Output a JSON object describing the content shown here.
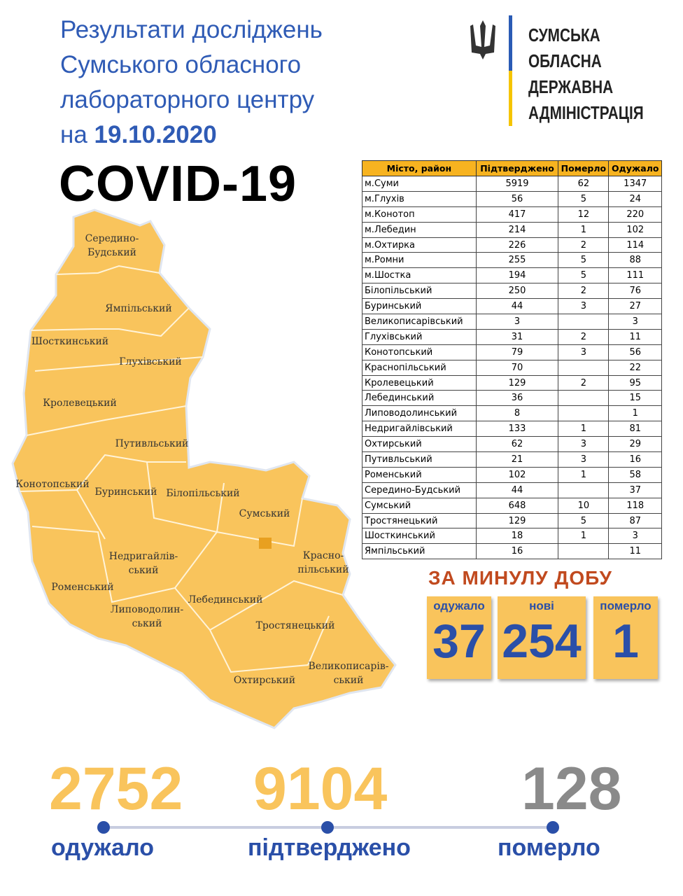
{
  "header": {
    "title_lines": [
      "Результати досліджень",
      "Сумського обласного",
      "лабораторного центру"
    ],
    "date_prefix": "на ",
    "date": "19.10.2020",
    "covid": "COVID-19"
  },
  "logo": {
    "lines": [
      "СУМСЬКА",
      "ОБЛАСНА",
      "ДЕРЖАВНА",
      "АДМІНІСТРАЦІЯ"
    ],
    "colors": {
      "blue": "#2a5bb5",
      "yellow": "#f5c400"
    }
  },
  "table": {
    "headers": [
      "Місто, район",
      "Підтверджено",
      "Померло",
      "Одужало"
    ],
    "rows": [
      [
        "м.Суми",
        "5919",
        "62",
        "1347"
      ],
      [
        "м.Глухів",
        "56",
        "5",
        "24"
      ],
      [
        "м.Конотоп",
        "417",
        "12",
        "220"
      ],
      [
        "м.Лебедин",
        "214",
        "1",
        "102"
      ],
      [
        "м.Охтирка",
        "226",
        "2",
        "114"
      ],
      [
        "м.Ромни",
        "255",
        "5",
        "88"
      ],
      [
        "м.Шостка",
        "194",
        "5",
        "111"
      ],
      [
        "Білопільський",
        "250",
        "2",
        "76"
      ],
      [
        "Буринський",
        "44",
        "3",
        "27"
      ],
      [
        "Великописарівський",
        "3",
        "",
        "3"
      ],
      [
        "Глухівський",
        "31",
        "2",
        "11"
      ],
      [
        "Конотопський",
        "79",
        "3",
        "56"
      ],
      [
        "Краснопільський",
        "70",
        "",
        "22"
      ],
      [
        "Кролевецький",
        "129",
        "2",
        "95"
      ],
      [
        "Лебединський",
        "36",
        "",
        "15"
      ],
      [
        "Липоводолинський",
        "8",
        "",
        "1"
      ],
      [
        "Недригайлівський",
        "133",
        "1",
        "81"
      ],
      [
        "Охтирський",
        "62",
        "3",
        "29"
      ],
      [
        "Путивльський",
        "21",
        "3",
        "16"
      ],
      [
        "Роменський",
        "102",
        "1",
        "58"
      ],
      [
        "Середино-Будський",
        "44",
        "",
        "37"
      ],
      [
        "Сумський",
        "648",
        "10",
        "118"
      ],
      [
        "Тростянецький",
        "129",
        "5",
        "87"
      ],
      [
        "Шосткинський",
        "18",
        "1",
        "3"
      ],
      [
        "Ямпільський",
        "16",
        "",
        "11"
      ]
    ]
  },
  "daily": {
    "title": "ЗА МИНУЛУ ДОБУ",
    "recovered_label": "одужало",
    "recovered": "37",
    "new_label": "нові",
    "new": "254",
    "died_label": "померло",
    "died": "1"
  },
  "totals": {
    "recovered": "2752",
    "recovered_label": "одужало",
    "confirmed": "9104",
    "confirmed_label": "підтверджено",
    "died": "128",
    "died_label": "померло"
  },
  "map": {
    "districts": [
      "Середино-|Будський",
      "Ямпільський",
      "Шосткинський",
      "Глухівський",
      "Кролевецький",
      "Путивльський",
      "Конотопський",
      "Буринський",
      "Білопільський",
      "Сумський",
      "Недригайлів-|ський",
      "Красно-|пільський",
      "Роменський",
      "Лебединський",
      "Липоводолин-|ський",
      "Тростянецький",
      "Охтирський",
      "Великописарів-|ський"
    ],
    "fill": "#f9c45c"
  }
}
